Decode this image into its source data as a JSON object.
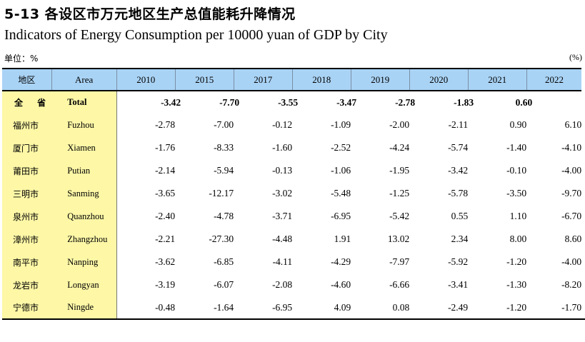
{
  "title_cn": "5-13  各设区市万元地区生产总值能耗升降情况",
  "title_en": "Indicators of Energy Consumption per 10000 yuan of GDP by City",
  "unit_label": "单位：%",
  "unit_symbol": "(%)",
  "headers": {
    "city": "地区",
    "area": "Area",
    "years": [
      "2010",
      "2015",
      "2017",
      "2018",
      "2019",
      "2020",
      "2021",
      "2022"
    ]
  },
  "rows": [
    {
      "city": "全 省",
      "area": "Total",
      "values": [
        "-3.42",
        "-7.70",
        "-3.55",
        "-3.47",
        "-2.78",
        "-1.83",
        "0.60",
        ""
      ]
    },
    {
      "city": "福州市",
      "area": "Fuzhou",
      "values": [
        "-2.78",
        "-7.00",
        "-0.12",
        "-1.09",
        "-2.00",
        "-2.11",
        "0.90",
        "6.10"
      ]
    },
    {
      "city": "厦门市",
      "area": "Xiamen",
      "values": [
        "-1.76",
        "-8.33",
        "-1.60",
        "-2.52",
        "-4.24",
        "-5.74",
        "-1.40",
        "-4.10"
      ]
    },
    {
      "city": "莆田市",
      "area": "Putian",
      "values": [
        "-2.14",
        "-5.94",
        "-0.13",
        "-1.06",
        "-1.95",
        "-3.42",
        "-0.10",
        "-4.00"
      ]
    },
    {
      "city": "三明市",
      "area": "Sanming",
      "values": [
        "-3.65",
        "-12.17",
        "-3.02",
        "-5.48",
        "-1.25",
        "-5.78",
        "-3.50",
        "-9.70"
      ]
    },
    {
      "city": "泉州市",
      "area": "Quanzhou",
      "values": [
        "-2.40",
        "-4.78",
        "-3.71",
        "-6.95",
        "-5.42",
        "0.55",
        "1.10",
        "-6.70"
      ]
    },
    {
      "city": "漳州市",
      "area": "Zhangzhou",
      "values": [
        "-2.21",
        "-27.30",
        "-4.48",
        "1.91",
        "13.02",
        "2.34",
        "8.00",
        "8.60"
      ]
    },
    {
      "city": "南平市",
      "area": "Nanping",
      "values": [
        "-3.62",
        "-6.85",
        "-4.11",
        "-4.29",
        "-7.97",
        "-5.92",
        "-1.20",
        "-4.00"
      ]
    },
    {
      "city": "龙岩市",
      "area": "Longyan",
      "values": [
        "-3.19",
        "-6.07",
        "-2.08",
        "-4.60",
        "-6.66",
        "-3.41",
        "-1.30",
        "-8.20"
      ]
    },
    {
      "city": "宁德市",
      "area": "Ningde",
      "values": [
        "-0.48",
        "-1.64",
        "-6.95",
        "4.09",
        "0.08",
        "-2.49",
        "-1.20",
        "-1.70"
      ]
    }
  ],
  "colors": {
    "header_bg": "#a9d3f5",
    "stub_bg": "#fdf7a6"
  }
}
